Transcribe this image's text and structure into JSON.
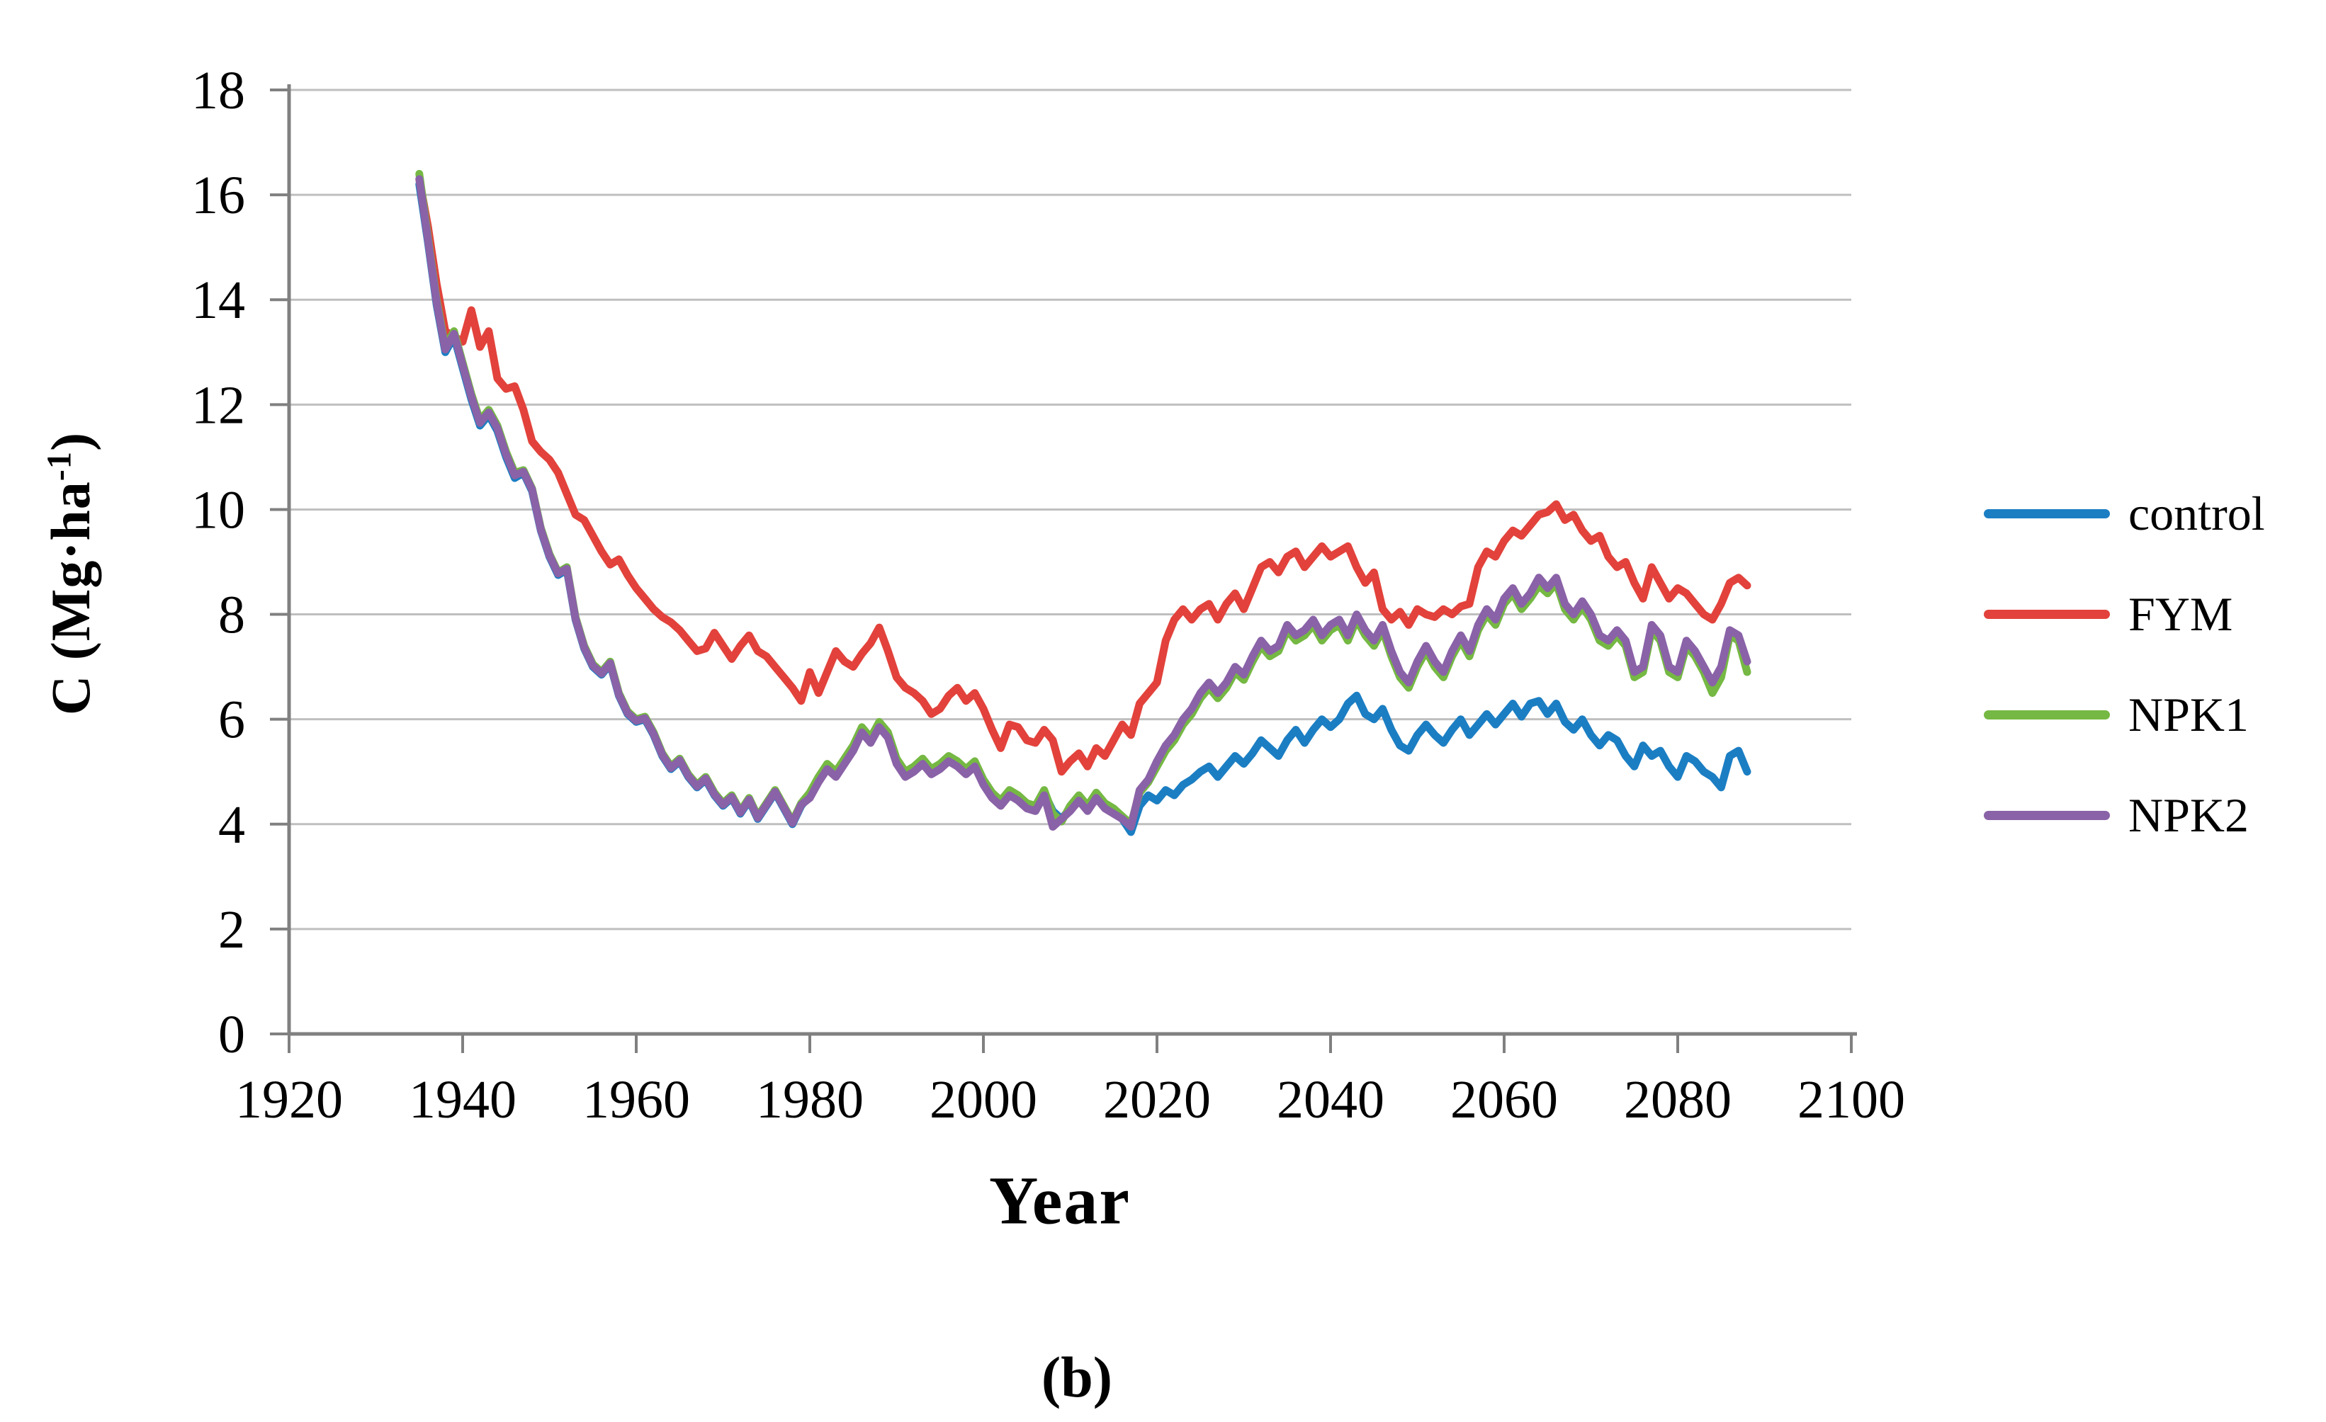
{
  "figure": {
    "caption": "(b)"
  },
  "axes": {
    "y_title_prefix": "C (Mg·ha",
    "y_title_sup": "-1",
    "y_title_suffix": ")"
  },
  "chart_data": {
    "type": "line",
    "title": "",
    "xlabel": "Year",
    "ylabel": "C (Mg·ha-1)",
    "xlim": [
      1920,
      2100
    ],
    "ylim": [
      0,
      18
    ],
    "x_ticks": [
      1920,
      1940,
      1960,
      1980,
      2000,
      2020,
      2040,
      2060,
      2080,
      2100
    ],
    "y_ticks": [
      0,
      2,
      4,
      6,
      8,
      10,
      12,
      14,
      16,
      18
    ],
    "grid": "horizontal",
    "grid_color": "#BFBFBF",
    "axis_color": "#808080",
    "legend_position": "right-center",
    "x_start": 1935,
    "x_step": 1,
    "series": [
      {
        "name": "control",
        "color": "#1B7EC3",
        "values": [
          16.2,
          15.1,
          13.9,
          13.0,
          13.3,
          12.7,
          12.1,
          11.6,
          11.8,
          11.5,
          11.0,
          10.6,
          10.7,
          10.35,
          9.6,
          9.1,
          8.75,
          8.85,
          7.9,
          7.35,
          7.0,
          6.85,
          7.05,
          6.45,
          6.1,
          5.95,
          6.0,
          5.7,
          5.3,
          5.05,
          5.2,
          4.9,
          4.7,
          4.85,
          4.55,
          4.35,
          4.5,
          4.2,
          4.45,
          4.1,
          4.35,
          4.6,
          4.3,
          4.0,
          4.35,
          4.55,
          4.85,
          5.1,
          4.95,
          5.2,
          5.45,
          5.8,
          5.6,
          5.9,
          5.7,
          5.2,
          4.95,
          5.05,
          5.2,
          5.0,
          5.1,
          5.25,
          5.15,
          5.0,
          5.15,
          4.8,
          4.55,
          4.4,
          4.6,
          4.5,
          4.35,
          4.3,
          4.6,
          4.25,
          4.1,
          4.3,
          4.5,
          4.3,
          4.55,
          4.35,
          4.25,
          4.1,
          3.85,
          4.35,
          4.55,
          4.45,
          4.65,
          4.55,
          4.75,
          4.85,
          5.0,
          5.1,
          4.9,
          5.1,
          5.3,
          5.15,
          5.35,
          5.6,
          5.45,
          5.3,
          5.6,
          5.8,
          5.55,
          5.8,
          6.0,
          5.85,
          6.0,
          6.3,
          6.45,
          6.1,
          6.0,
          6.2,
          5.8,
          5.5,
          5.4,
          5.7,
          5.9,
          5.7,
          5.55,
          5.8,
          6.0,
          5.7,
          5.9,
          6.1,
          5.9,
          6.1,
          6.3,
          6.05,
          6.3,
          6.35,
          6.1,
          6.3,
          5.95,
          5.8,
          6.0,
          5.7,
          5.5,
          5.7,
          5.6,
          5.3,
          5.1,
          5.5,
          5.3,
          5.4,
          5.1,
          4.9,
          5.3,
          5.2,
          5.0,
          4.9,
          4.7,
          5.3,
          5.4,
          5.0
        ]
      },
      {
        "name": "FYM",
        "color": "#E2423B",
        "values": [
          16.3,
          15.4,
          14.3,
          13.4,
          13.3,
          13.2,
          13.8,
          13.1,
          13.4,
          12.5,
          12.3,
          12.35,
          11.9,
          11.3,
          11.1,
          10.95,
          10.7,
          10.3,
          9.9,
          9.8,
          9.5,
          9.2,
          8.95,
          9.05,
          8.75,
          8.5,
          8.3,
          8.1,
          7.95,
          7.85,
          7.7,
          7.5,
          7.3,
          7.35,
          7.65,
          7.4,
          7.15,
          7.4,
          7.6,
          7.3,
          7.2,
          7.0,
          6.8,
          6.6,
          6.35,
          6.9,
          6.5,
          6.9,
          7.3,
          7.1,
          7.0,
          7.25,
          7.45,
          7.75,
          7.3,
          6.8,
          6.6,
          6.5,
          6.35,
          6.1,
          6.2,
          6.45,
          6.6,
          6.35,
          6.5,
          6.2,
          5.8,
          5.45,
          5.9,
          5.85,
          5.6,
          5.55,
          5.8,
          5.6,
          5.0,
          5.2,
          5.35,
          5.1,
          5.45,
          5.3,
          5.6,
          5.9,
          5.7,
          6.3,
          6.5,
          6.7,
          7.5,
          7.9,
          8.1,
          7.9,
          8.1,
          8.2,
          7.9,
          8.2,
          8.4,
          8.1,
          8.5,
          8.9,
          9.0,
          8.8,
          9.1,
          9.2,
          8.9,
          9.1,
          9.3,
          9.1,
          9.2,
          9.3,
          8.9,
          8.6,
          8.8,
          8.1,
          7.9,
          8.05,
          7.8,
          8.1,
          8.0,
          7.95,
          8.1,
          8.0,
          8.15,
          8.2,
          8.9,
          9.2,
          9.1,
          9.4,
          9.6,
          9.5,
          9.7,
          9.9,
          9.95,
          10.1,
          9.8,
          9.9,
          9.6,
          9.4,
          9.5,
          9.1,
          8.9,
          9.0,
          8.6,
          8.3,
          8.9,
          8.6,
          8.3,
          8.5,
          8.4,
          8.2,
          8.0,
          7.9,
          8.2,
          8.6,
          8.7,
          8.55
        ]
      },
      {
        "name": "NPK1",
        "color": "#75B843",
        "values": [
          16.4,
          15.2,
          14.0,
          13.1,
          13.4,
          12.8,
          12.2,
          11.7,
          11.9,
          11.6,
          11.1,
          10.7,
          10.75,
          10.4,
          9.65,
          9.15,
          8.8,
          8.9,
          7.95,
          7.4,
          7.05,
          6.9,
          7.1,
          6.5,
          6.15,
          6.0,
          6.05,
          5.75,
          5.35,
          5.1,
          5.25,
          4.95,
          4.75,
          4.9,
          4.6,
          4.4,
          4.55,
          4.25,
          4.5,
          4.15,
          4.4,
          4.65,
          4.35,
          4.05,
          4.4,
          4.6,
          4.9,
          5.15,
          5.0,
          5.25,
          5.5,
          5.85,
          5.65,
          5.95,
          5.75,
          5.25,
          5.0,
          5.1,
          5.25,
          5.05,
          5.15,
          5.3,
          5.2,
          5.05,
          5.2,
          4.85,
          4.6,
          4.45,
          4.65,
          4.55,
          4.4,
          4.35,
          4.65,
          4.2,
          4.05,
          4.35,
          4.55,
          4.35,
          4.6,
          4.4,
          4.3,
          4.15,
          4.0,
          4.6,
          4.8,
          5.1,
          5.4,
          5.6,
          5.9,
          6.1,
          6.4,
          6.6,
          6.4,
          6.6,
          6.9,
          6.75,
          7.1,
          7.4,
          7.2,
          7.3,
          7.7,
          7.5,
          7.6,
          7.8,
          7.5,
          7.7,
          7.8,
          7.5,
          7.9,
          7.6,
          7.4,
          7.7,
          7.2,
          6.8,
          6.6,
          7.0,
          7.3,
          7.0,
          6.8,
          7.2,
          7.5,
          7.2,
          7.7,
          8.0,
          7.8,
          8.2,
          8.4,
          8.1,
          8.3,
          8.55,
          8.4,
          8.6,
          8.1,
          7.9,
          8.15,
          7.9,
          7.5,
          7.4,
          7.6,
          7.4,
          6.8,
          6.9,
          7.7,
          7.5,
          6.9,
          6.8,
          7.4,
          7.2,
          6.9,
          6.5,
          6.8,
          7.6,
          7.5,
          6.9
        ]
      },
      {
        "name": "NPK2",
        "color": "#8A62A7",
        "values": [
          16.3,
          15.15,
          13.95,
          13.05,
          13.35,
          12.75,
          12.15,
          11.65,
          11.85,
          11.55,
          11.05,
          10.65,
          10.72,
          10.38,
          9.62,
          9.12,
          8.78,
          8.87,
          7.92,
          7.37,
          7.02,
          6.87,
          7.07,
          6.47,
          6.12,
          5.97,
          6.02,
          5.72,
          5.32,
          5.07,
          5.22,
          4.92,
          4.72,
          4.87,
          4.57,
          4.37,
          4.52,
          4.22,
          4.47,
          4.12,
          4.37,
          4.62,
          4.32,
          4.02,
          4.37,
          4.5,
          4.8,
          5.05,
          4.9,
          5.15,
          5.4,
          5.75,
          5.55,
          5.85,
          5.65,
          5.15,
          4.9,
          5.0,
          5.15,
          4.95,
          5.05,
          5.2,
          5.1,
          4.95,
          5.1,
          4.75,
          4.5,
          4.35,
          4.55,
          4.45,
          4.3,
          4.25,
          4.55,
          3.95,
          4.1,
          4.25,
          4.45,
          4.25,
          4.5,
          4.3,
          4.2,
          4.1,
          3.95,
          4.65,
          4.85,
          5.2,
          5.5,
          5.7,
          6.0,
          6.2,
          6.5,
          6.7,
          6.5,
          6.7,
          7.0,
          6.85,
          7.2,
          7.5,
          7.3,
          7.4,
          7.8,
          7.6,
          7.7,
          7.9,
          7.6,
          7.8,
          7.9,
          7.6,
          8.0,
          7.7,
          7.5,
          7.8,
          7.3,
          6.9,
          6.7,
          7.1,
          7.4,
          7.1,
          6.9,
          7.3,
          7.6,
          7.3,
          7.8,
          8.1,
          7.9,
          8.3,
          8.5,
          8.2,
          8.4,
          8.7,
          8.5,
          8.7,
          8.2,
          8.0,
          8.25,
          8.0,
          7.6,
          7.5,
          7.7,
          7.5,
          6.9,
          7.0,
          7.8,
          7.6,
          7.0,
          6.9,
          7.5,
          7.3,
          7.0,
          6.7,
          7.0,
          7.7,
          7.6,
          7.1
        ]
      }
    ]
  }
}
